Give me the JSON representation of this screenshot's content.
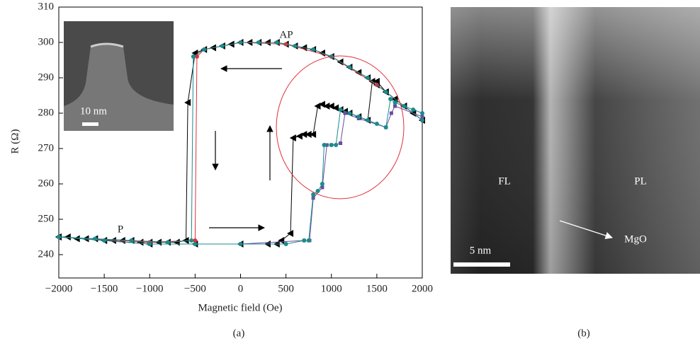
{
  "chart_data": {
    "type": "line",
    "x_label": "Magnetic field (Oe)",
    "y_label": "R (Ω)",
    "annotations": [
      "AP",
      "P"
    ],
    "inset_scale": "10 nm",
    "xlim": [
      -2000,
      2000
    ],
    "ylim": [
      233.4,
      310
    ],
    "xticks": [
      {
        "value": -2000,
        "label": "−2000"
      },
      {
        "value": -1500,
        "label": "−1500"
      },
      {
        "value": -1000,
        "label": "−1000"
      },
      {
        "value": -500,
        "label": "−500"
      },
      0,
      500,
      1000,
      1500,
      2000
    ],
    "yticks": [
      240,
      250,
      260,
      270,
      280,
      290,
      300,
      310
    ],
    "series": [
      {
        "color": "#000000",
        "marker": "triangle-left",
        "x": [
          2000,
          1900,
          1800,
          1700,
          1600,
          1500,
          1400,
          1300,
          1200,
          1100,
          1000,
          900,
          800,
          700,
          600,
          500,
          400,
          300,
          200,
          100,
          0,
          -100,
          -200,
          -300,
          -400,
          -500,
          -580,
          -600,
          -700,
          -800,
          -900,
          -1000,
          -1100,
          -1200,
          -1300,
          -1400,
          -1500,
          -1600,
          -1700,
          -1800,
          -1900,
          -2000
        ],
        "values": [
          278,
          280,
          282,
          284,
          286,
          288,
          290,
          291.5,
          293,
          294.5,
          296,
          297,
          298,
          298.5,
          299,
          299.5,
          300,
          300,
          300,
          300,
          300,
          299.5,
          299,
          298.5,
          298,
          297,
          283,
          244,
          243.5,
          243.5,
          243.5,
          243.5,
          243.5,
          244,
          244,
          244,
          244,
          244.5,
          244.5,
          244.5,
          245,
          245
        ]
      },
      {
        "color": "#000000",
        "marker": "triangle-left",
        "x": [
          -2000,
          -1500,
          -1000,
          -500,
          0,
          300,
          400,
          450,
          550,
          580,
          650,
          700,
          750,
          800,
          850,
          900,
          950,
          1000,
          1050,
          1100,
          1150,
          1200,
          1300,
          1400,
          1450,
          1500,
          1600,
          1700,
          1800,
          1900,
          2000
        ],
        "values": [
          245,
          244,
          243,
          243,
          243,
          243,
          243,
          244,
          246,
          273,
          273.5,
          274,
          274,
          274,
          282,
          282.5,
          282,
          282,
          281.5,
          281,
          280.5,
          280,
          279,
          278,
          289,
          289,
          286,
          284,
          282,
          280,
          278
        ]
      },
      {
        "color": "#e0303a",
        "marker": "circle",
        "x": [
          2000,
          1500,
          1000,
          500,
          0,
          -400,
          -480,
          -500,
          -1000,
          -2000
        ],
        "values": [
          278,
          288,
          296,
          299.5,
          300,
          298,
          296,
          244,
          243.5,
          245
        ]
      },
      {
        "color": "#6a4ca0",
        "marker": "square",
        "x": [
          -2000,
          -1000,
          0,
          700,
          760,
          800,
          900,
          950,
          1000,
          1100,
          1150,
          1300,
          1600,
          1660,
          1700,
          2000
        ],
        "values": [
          245,
          243,
          243,
          244,
          244,
          256,
          259,
          271,
          271,
          271.5,
          280,
          278.5,
          276,
          280,
          282,
          279
        ]
      },
      {
        "color": "#1a8c8c",
        "marker": "circle",
        "x": [
          2000,
          1800,
          1600,
          1400,
          1200,
          1000,
          800,
          600,
          400,
          200,
          0,
          -200,
          -400,
          -520,
          -540,
          -800,
          -1200,
          -1600,
          -2000
        ],
        "values": [
          278,
          282,
          286,
          290,
          293,
          296,
          298,
          299,
          300,
          300,
          300,
          299,
          298,
          296,
          244,
          243.5,
          244,
          244.5,
          245
        ]
      },
      {
        "color": "#1a8c8c",
        "marker": "circle",
        "x": [
          -2000,
          -1500,
          -1000,
          -500,
          0,
          500,
          700,
          750,
          800,
          850,
          900,
          920,
          1000,
          1050,
          1100,
          1200,
          1300,
          1400,
          1500,
          1600,
          1650,
          1700,
          1800,
          1900,
          2000
        ],
        "values": [
          245,
          244,
          243,
          243,
          243,
          243,
          244,
          244,
          257,
          258,
          260,
          271,
          271,
          271,
          281,
          280,
          279,
          278,
          277,
          276,
          284,
          283,
          282,
          281,
          280
        ]
      }
    ]
  },
  "image_b": {
    "labels": [
      "FL",
      "PL",
      "MgO"
    ],
    "scale": "5 nm"
  },
  "panel_labels": [
    "(a)",
    "(b)"
  ]
}
